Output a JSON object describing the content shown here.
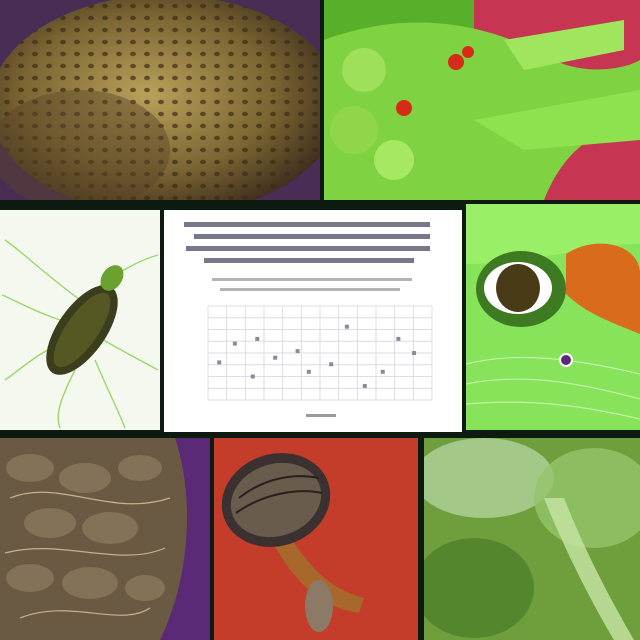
{
  "collage": {
    "panels": [
      {
        "id": "p1",
        "subject": "sponge-texture"
      },
      {
        "id": "p2",
        "subject": "green-creature"
      },
      {
        "id": "p3",
        "subject": "insect-illustration"
      },
      {
        "id": "p4",
        "subject": "scientific-chart"
      },
      {
        "id": "p5",
        "subject": "green-eye-closeup"
      },
      {
        "id": "p6",
        "subject": "pine-cone-texture"
      },
      {
        "id": "p7",
        "subject": "mushroom-illustration"
      },
      {
        "id": "p8",
        "subject": "green-moss-macro"
      }
    ]
  },
  "colors": {
    "border": "#0d1a0f",
    "grid": "#d9d9e3",
    "chart_bg": "#ffffff",
    "red_bg": "#c23a2c",
    "purple_bg": "#5b2a76",
    "green": "#7fe04a"
  }
}
